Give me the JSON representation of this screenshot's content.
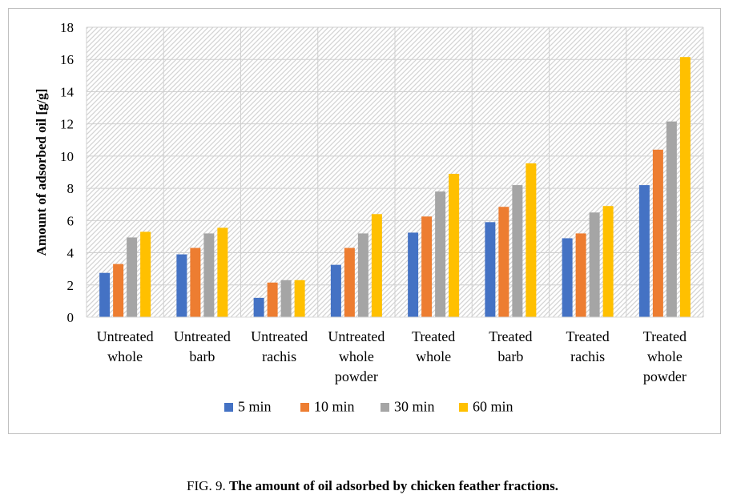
{
  "chart_data": {
    "type": "bar",
    "categories": [
      [
        "Untreated",
        "whole"
      ],
      [
        "Untreated",
        "barb"
      ],
      [
        "Untreated",
        "rachis"
      ],
      [
        "Untreated",
        "whole",
        "powder"
      ],
      [
        "Treated",
        "whole"
      ],
      [
        "Treated",
        "barb"
      ],
      [
        "Treated",
        "rachis"
      ],
      [
        "Treated",
        "whole",
        "powder"
      ]
    ],
    "series": [
      {
        "name": "5 min",
        "color": "#4472C4",
        "values": [
          2.75,
          3.9,
          1.2,
          3.25,
          5.25,
          5.9,
          4.9,
          8.2
        ]
      },
      {
        "name": "10 min",
        "color": "#ED7D31",
        "values": [
          3.3,
          4.3,
          2.15,
          4.3,
          6.25,
          6.85,
          5.2,
          10.4
        ]
      },
      {
        "name": "30 min",
        "color": "#A5A5A5",
        "values": [
          4.95,
          5.2,
          2.3,
          5.2,
          7.8,
          8.2,
          6.5,
          12.15
        ]
      },
      {
        "name": "60 min",
        "color": "#FFC000",
        "values": [
          5.3,
          5.55,
          2.3,
          6.4,
          8.9,
          9.55,
          6.9,
          16.15
        ]
      }
    ],
    "ylabel": "Amount of adsorbed oil [g/g]",
    "xlabel": "",
    "ylim": [
      0,
      18
    ],
    "yticks": [
      "0",
      "2",
      "4",
      "6",
      "8",
      "10",
      "12",
      "14",
      "16",
      "18"
    ],
    "grid": true,
    "legend_position": "bottom"
  },
  "caption": {
    "prefix": "FIG. 9.",
    "text": "The amount of oil adsorbed by chicken feather fractions."
  }
}
